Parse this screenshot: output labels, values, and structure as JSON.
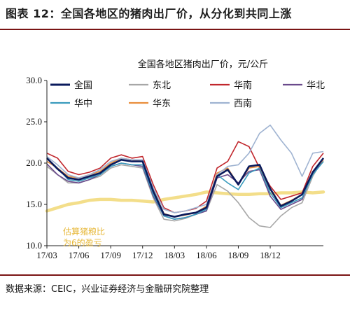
{
  "figure": {
    "title": "图表  12：全国各地区的猪肉出厂价，从分化到共同上涨",
    "source": "数据来源：CEIC，兴业证券经济与金融研究院整理"
  },
  "chart_data": {
    "type": "line",
    "title": "全国各地区猪肉出厂价，元/公斤",
    "xlabel": "",
    "ylabel": "",
    "ylim": [
      10.0,
      30.0
    ],
    "yticks": [
      "10.0",
      "15.0",
      "20.0",
      "25.0",
      "30.0"
    ],
    "xlim": [
      0,
      26
    ],
    "xticks": [
      {
        "label": "17/03",
        "x": 0
      },
      {
        "label": "17/06",
        "x": 3
      },
      {
        "label": "17/09",
        "x": 6
      },
      {
        "label": "17/12",
        "x": 9
      },
      {
        "label": "18/03",
        "x": 12
      },
      {
        "label": "18/06",
        "x": 15
      },
      {
        "label": "18/09",
        "x": 18
      },
      {
        "label": "18/12",
        "x": 21
      }
    ],
    "grid": false,
    "legend_position": "top",
    "x": [
      0,
      1,
      2,
      3,
      4,
      5,
      6,
      7,
      8,
      9,
      10,
      11,
      12,
      13,
      14,
      15,
      16,
      17,
      18,
      19,
      20,
      21,
      22,
      23,
      24,
      25,
      26
    ],
    "series": [
      {
        "name": "全国",
        "color": "#0a1a5c",
        "width": 2.6,
        "values": [
          20.6,
          19.3,
          18.2,
          18.0,
          18.4,
          18.8,
          19.8,
          20.4,
          20.2,
          20.2,
          16.6,
          13.8,
          13.5,
          13.8,
          14.0,
          14.6,
          18.4,
          19.2,
          17.4,
          19.6,
          19.8,
          16.9,
          14.8,
          15.4,
          16.2,
          18.9,
          20.6
        ]
      },
      {
        "name": "东北",
        "color": "#a7a7a7",
        "width": 1.6,
        "values": [
          19.6,
          18.6,
          17.6,
          17.6,
          18.0,
          18.4,
          19.4,
          19.8,
          19.6,
          19.4,
          15.8,
          13.2,
          13.0,
          13.3,
          13.8,
          14.2,
          17.4,
          16.6,
          15.2,
          13.4,
          12.4,
          12.2,
          13.6,
          14.6,
          15.2,
          18.4,
          20.6
        ]
      },
      {
        "name": "华南",
        "color": "#c1272d",
        "width": 1.6,
        "values": [
          21.2,
          20.6,
          19.0,
          18.6,
          18.9,
          19.4,
          20.6,
          21.0,
          20.6,
          20.8,
          17.4,
          14.6,
          14.0,
          14.2,
          14.5,
          15.4,
          19.4,
          20.2,
          22.6,
          22.0,
          19.4,
          17.2,
          15.6,
          16.0,
          16.4,
          19.6,
          21.2
        ]
      },
      {
        "name": "华北",
        "color": "#6a4a8c",
        "width": 1.6,
        "values": [
          19.9,
          18.6,
          17.8,
          17.6,
          18.0,
          18.6,
          19.6,
          20.0,
          19.8,
          19.6,
          16.0,
          13.6,
          13.2,
          13.4,
          13.8,
          14.2,
          18.2,
          18.6,
          17.6,
          19.0,
          19.2,
          16.0,
          14.4,
          15.0,
          15.6,
          18.8,
          20.2
        ]
      },
      {
        "name": "华中",
        "color": "#3a9bbd",
        "width": 1.6,
        "values": [
          20.6,
          19.4,
          18.0,
          17.8,
          18.2,
          18.6,
          19.6,
          20.0,
          19.8,
          19.8,
          16.2,
          13.6,
          13.2,
          13.4,
          13.8,
          14.4,
          18.6,
          17.6,
          16.8,
          18.8,
          19.4,
          16.4,
          14.6,
          15.2,
          15.8,
          18.6,
          20.2
        ]
      },
      {
        "name": "华东",
        "color": "#e98e3c",
        "width": 1.6,
        "values": [
          20.2,
          19.4,
          18.4,
          18.2,
          18.6,
          19.0,
          20.0,
          20.6,
          20.4,
          20.2,
          16.8,
          13.9,
          13.5,
          13.7,
          14.0,
          14.8,
          18.8,
          19.4,
          17.4,
          19.4,
          19.6,
          16.8,
          14.9,
          15.5,
          16.2,
          19.0,
          20.4
        ]
      },
      {
        "name": "西南",
        "color": "#9fb3d1",
        "width": 1.6,
        "values": [
          20.8,
          19.8,
          18.6,
          18.2,
          18.6,
          19.2,
          20.2,
          20.6,
          20.4,
          20.4,
          17.0,
          14.4,
          14.0,
          14.2,
          14.6,
          15.0,
          18.6,
          19.6,
          19.8,
          21.2,
          23.6,
          24.6,
          22.8,
          21.2,
          18.4,
          21.2,
          21.4
        ]
      }
    ],
    "breakeven": {
      "label_line1": "估算猪粮比",
      "label_line2": "为6的盈亏",
      "color": "#f3de8a",
      "values": [
        14.2,
        14.6,
        15.0,
        15.2,
        15.5,
        15.6,
        15.6,
        15.5,
        15.5,
        15.4,
        15.3,
        15.6,
        15.8,
        16.0,
        16.2,
        16.5,
        16.4,
        16.3,
        16.2,
        16.2,
        16.3,
        16.3,
        16.4,
        16.4,
        16.5,
        16.4,
        16.5
      ]
    }
  }
}
